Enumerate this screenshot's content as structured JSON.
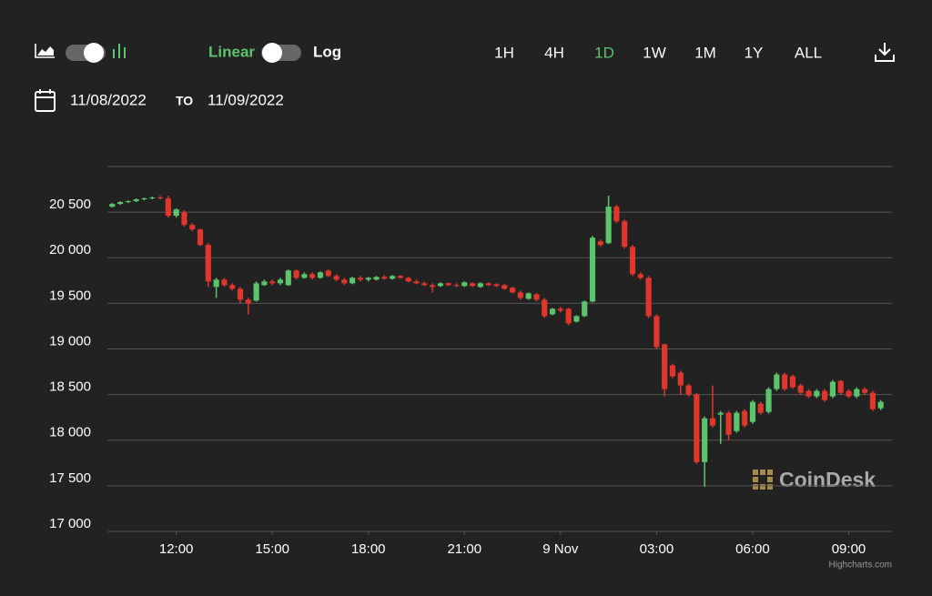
{
  "toolbar": {
    "scale_options": [
      "Linear",
      "Log"
    ],
    "active_scale": "Linear",
    "ranges": [
      "1H",
      "4H",
      "1D",
      "1W",
      "1M",
      "1Y",
      "ALL"
    ],
    "active_range": "1D",
    "active_color": "#5cc46d",
    "from_date": "11/08/2022",
    "to_word": "TO",
    "to_date": "11/09/2022"
  },
  "watermark": "CoinDesk",
  "credit": "Highcharts.com",
  "chart_data": {
    "type": "candlestick",
    "up_color": "#5cc46d",
    "down_color": "#e0362b",
    "grid": true,
    "xlim": [
      9.85,
      34.35
    ],
    "xticks": [
      {
        "value": 12,
        "label": "12:00"
      },
      {
        "value": 15,
        "label": "15:00"
      },
      {
        "value": 18,
        "label": "18:00"
      },
      {
        "value": 21,
        "label": "21:00"
      },
      {
        "value": 24,
        "label": "9 Nov"
      },
      {
        "value": 27,
        "label": "03:00"
      },
      {
        "value": 30,
        "label": "06:00"
      },
      {
        "value": 33,
        "label": "09:00"
      }
    ],
    "ylim": [
      17000,
      21000
    ],
    "yticks": [
      {
        "value": 17000,
        "label": "17 000"
      },
      {
        "value": 17500,
        "label": "17 500"
      },
      {
        "value": 18000,
        "label": "18 000"
      },
      {
        "value": 18500,
        "label": "18 500"
      },
      {
        "value": 19000,
        "label": "19 000"
      },
      {
        "value": 19500,
        "label": "19 500"
      },
      {
        "value": 20000,
        "label": "20 000"
      },
      {
        "value": 20500,
        "label": "20 500"
      }
    ],
    "x": [
      10,
      10.25,
      10.5,
      10.75,
      11,
      11.25,
      11.5,
      11.75,
      12,
      12.25,
      12.5,
      12.75,
      13,
      13.25,
      13.5,
      13.75,
      14,
      14.25,
      14.5,
      14.75,
      15,
      15.25,
      15.5,
      15.75,
      16,
      16.25,
      16.5,
      16.75,
      17,
      17.25,
      17.5,
      17.75,
      18,
      18.25,
      18.5,
      18.75,
      19,
      19.25,
      19.5,
      19.75,
      20,
      20.25,
      20.5,
      20.75,
      21,
      21.25,
      21.5,
      21.75,
      22,
      22.25,
      22.5,
      22.75,
      23,
      23.25,
      23.5,
      23.75,
      24,
      24.25,
      24.5,
      24.75,
      25,
      25.25,
      25.5,
      25.75,
      26,
      26.25,
      26.5,
      26.75,
      27,
      27.25,
      27.5,
      27.75,
      28,
      28.25,
      28.5,
      28.75,
      29,
      29.25,
      29.5,
      29.75,
      30,
      30.25,
      30.5,
      30.75,
      31,
      31.25,
      31.5,
      31.75,
      32,
      32.25,
      32.5,
      32.75,
      33,
      33.25,
      33.5,
      33.75,
      34
    ],
    "ohlc": [
      [
        20560,
        20600,
        20550,
        20590
      ],
      [
        20590,
        20620,
        20580,
        20610
      ],
      [
        20610,
        20630,
        20600,
        20620
      ],
      [
        20620,
        20650,
        20610,
        20640
      ],
      [
        20640,
        20660,
        20630,
        20650
      ],
      [
        20650,
        20670,
        20640,
        20660
      ],
      [
        20660,
        20680,
        20640,
        20650
      ],
      [
        20650,
        20680,
        20440,
        20460
      ],
      [
        20460,
        20540,
        20440,
        20530
      ],
      [
        20500,
        20520,
        20340,
        20360
      ],
      [
        20360,
        20380,
        20290,
        20310
      ],
      [
        20310,
        20320,
        20130,
        20140
      ],
      [
        20140,
        20160,
        19680,
        19740
      ],
      [
        19680,
        19780,
        19560,
        19760
      ],
      [
        19760,
        19780,
        19680,
        19700
      ],
      [
        19700,
        19720,
        19640,
        19660
      ],
      [
        19660,
        19680,
        19500,
        19540
      ],
      [
        19540,
        19560,
        19380,
        19500
      ],
      [
        19530,
        19740,
        19520,
        19720
      ],
      [
        19700,
        19760,
        19690,
        19740
      ],
      [
        19740,
        19760,
        19700,
        19720
      ],
      [
        19720,
        19780,
        19700,
        19760
      ],
      [
        19700,
        19870,
        19690,
        19860
      ],
      [
        19860,
        19870,
        19760,
        19780
      ],
      [
        19780,
        19840,
        19770,
        19820
      ],
      [
        19820,
        19840,
        19760,
        19780
      ],
      [
        19780,
        19850,
        19770,
        19840
      ],
      [
        19860,
        19870,
        19790,
        19800
      ],
      [
        19800,
        19820,
        19740,
        19760
      ],
      [
        19760,
        19780,
        19700,
        19720
      ],
      [
        19720,
        19790,
        19710,
        19780
      ],
      [
        19780,
        19800,
        19740,
        19760
      ],
      [
        19760,
        19790,
        19740,
        19780
      ],
      [
        19760,
        19800,
        19750,
        19790
      ],
      [
        19790,
        19810,
        19760,
        19770
      ],
      [
        19770,
        19810,
        19760,
        19800
      ],
      [
        19800,
        19810,
        19770,
        19780
      ],
      [
        19780,
        19790,
        19730,
        19740
      ],
      [
        19740,
        19760,
        19710,
        19720
      ],
      [
        19720,
        19740,
        19690,
        19700
      ],
      [
        19700,
        19720,
        19620,
        19680
      ],
      [
        19690,
        19730,
        19680,
        19720
      ],
      [
        19720,
        19730,
        19690,
        19700
      ],
      [
        19700,
        19720,
        19680,
        19690
      ],
      [
        19690,
        19740,
        19680,
        19730
      ],
      [
        19720,
        19730,
        19680,
        19690
      ],
      [
        19680,
        19730,
        19670,
        19720
      ],
      [
        19720,
        19730,
        19690,
        19700
      ],
      [
        19710,
        19720,
        19680,
        19690
      ],
      [
        19700,
        19710,
        19650,
        19660
      ],
      [
        19670,
        19680,
        19610,
        19620
      ],
      [
        19620,
        19640,
        19540,
        19560
      ],
      [
        19550,
        19620,
        19540,
        19610
      ],
      [
        19600,
        19610,
        19520,
        19540
      ],
      [
        19540,
        19560,
        19340,
        19360
      ],
      [
        19380,
        19450,
        19370,
        19440
      ],
      [
        19440,
        19460,
        19400,
        19420
      ],
      [
        19440,
        19450,
        19260,
        19280
      ],
      [
        19300,
        19370,
        19290,
        19360
      ],
      [
        19360,
        19530,
        19350,
        19520
      ],
      [
        19520,
        20240,
        19510,
        20220
      ],
      [
        20180,
        20200,
        20120,
        20140
      ],
      [
        20160,
        20680,
        20150,
        20560
      ],
      [
        20560,
        20580,
        20380,
        20400
      ],
      [
        20400,
        20420,
        20100,
        20120
      ],
      [
        20120,
        20140,
        19800,
        19820
      ],
      [
        19820,
        19840,
        19760,
        19780
      ],
      [
        19780,
        19800,
        19340,
        19360
      ],
      [
        19360,
        19380,
        19000,
        19020
      ],
      [
        19050,
        19060,
        18480,
        18560
      ],
      [
        18820,
        18840,
        18680,
        18700
      ],
      [
        18740,
        18760,
        18500,
        18600
      ],
      [
        18600,
        18620,
        18480,
        18500
      ],
      [
        18500,
        18520,
        17740,
        17760
      ],
      [
        17760,
        18260,
        17490,
        18240
      ],
      [
        18240,
        18600,
        18140,
        18160
      ],
      [
        18280,
        18320,
        17960,
        18300
      ],
      [
        18300,
        18320,
        18000,
        18060
      ],
      [
        18100,
        18320,
        18080,
        18300
      ],
      [
        18320,
        18340,
        18140,
        18160
      ],
      [
        18200,
        18440,
        18180,
        18420
      ],
      [
        18400,
        18420,
        18280,
        18300
      ],
      [
        18310,
        18580,
        18290,
        18560
      ],
      [
        18560,
        18740,
        18540,
        18720
      ],
      [
        18720,
        18740,
        18540,
        18560
      ],
      [
        18700,
        18720,
        18560,
        18580
      ],
      [
        18600,
        18620,
        18500,
        18520
      ],
      [
        18540,
        18560,
        18460,
        18480
      ],
      [
        18480,
        18560,
        18460,
        18540
      ],
      [
        18540,
        18560,
        18420,
        18440
      ],
      [
        18480,
        18660,
        18460,
        18640
      ],
      [
        18650,
        18660,
        18500,
        18520
      ],
      [
        18540,
        18560,
        18460,
        18480
      ],
      [
        18480,
        18580,
        18460,
        18560
      ],
      [
        18560,
        18580,
        18500,
        18520
      ],
      [
        18520,
        18540,
        18320,
        18340
      ],
      [
        18350,
        18440,
        18330,
        18420
      ]
    ]
  }
}
